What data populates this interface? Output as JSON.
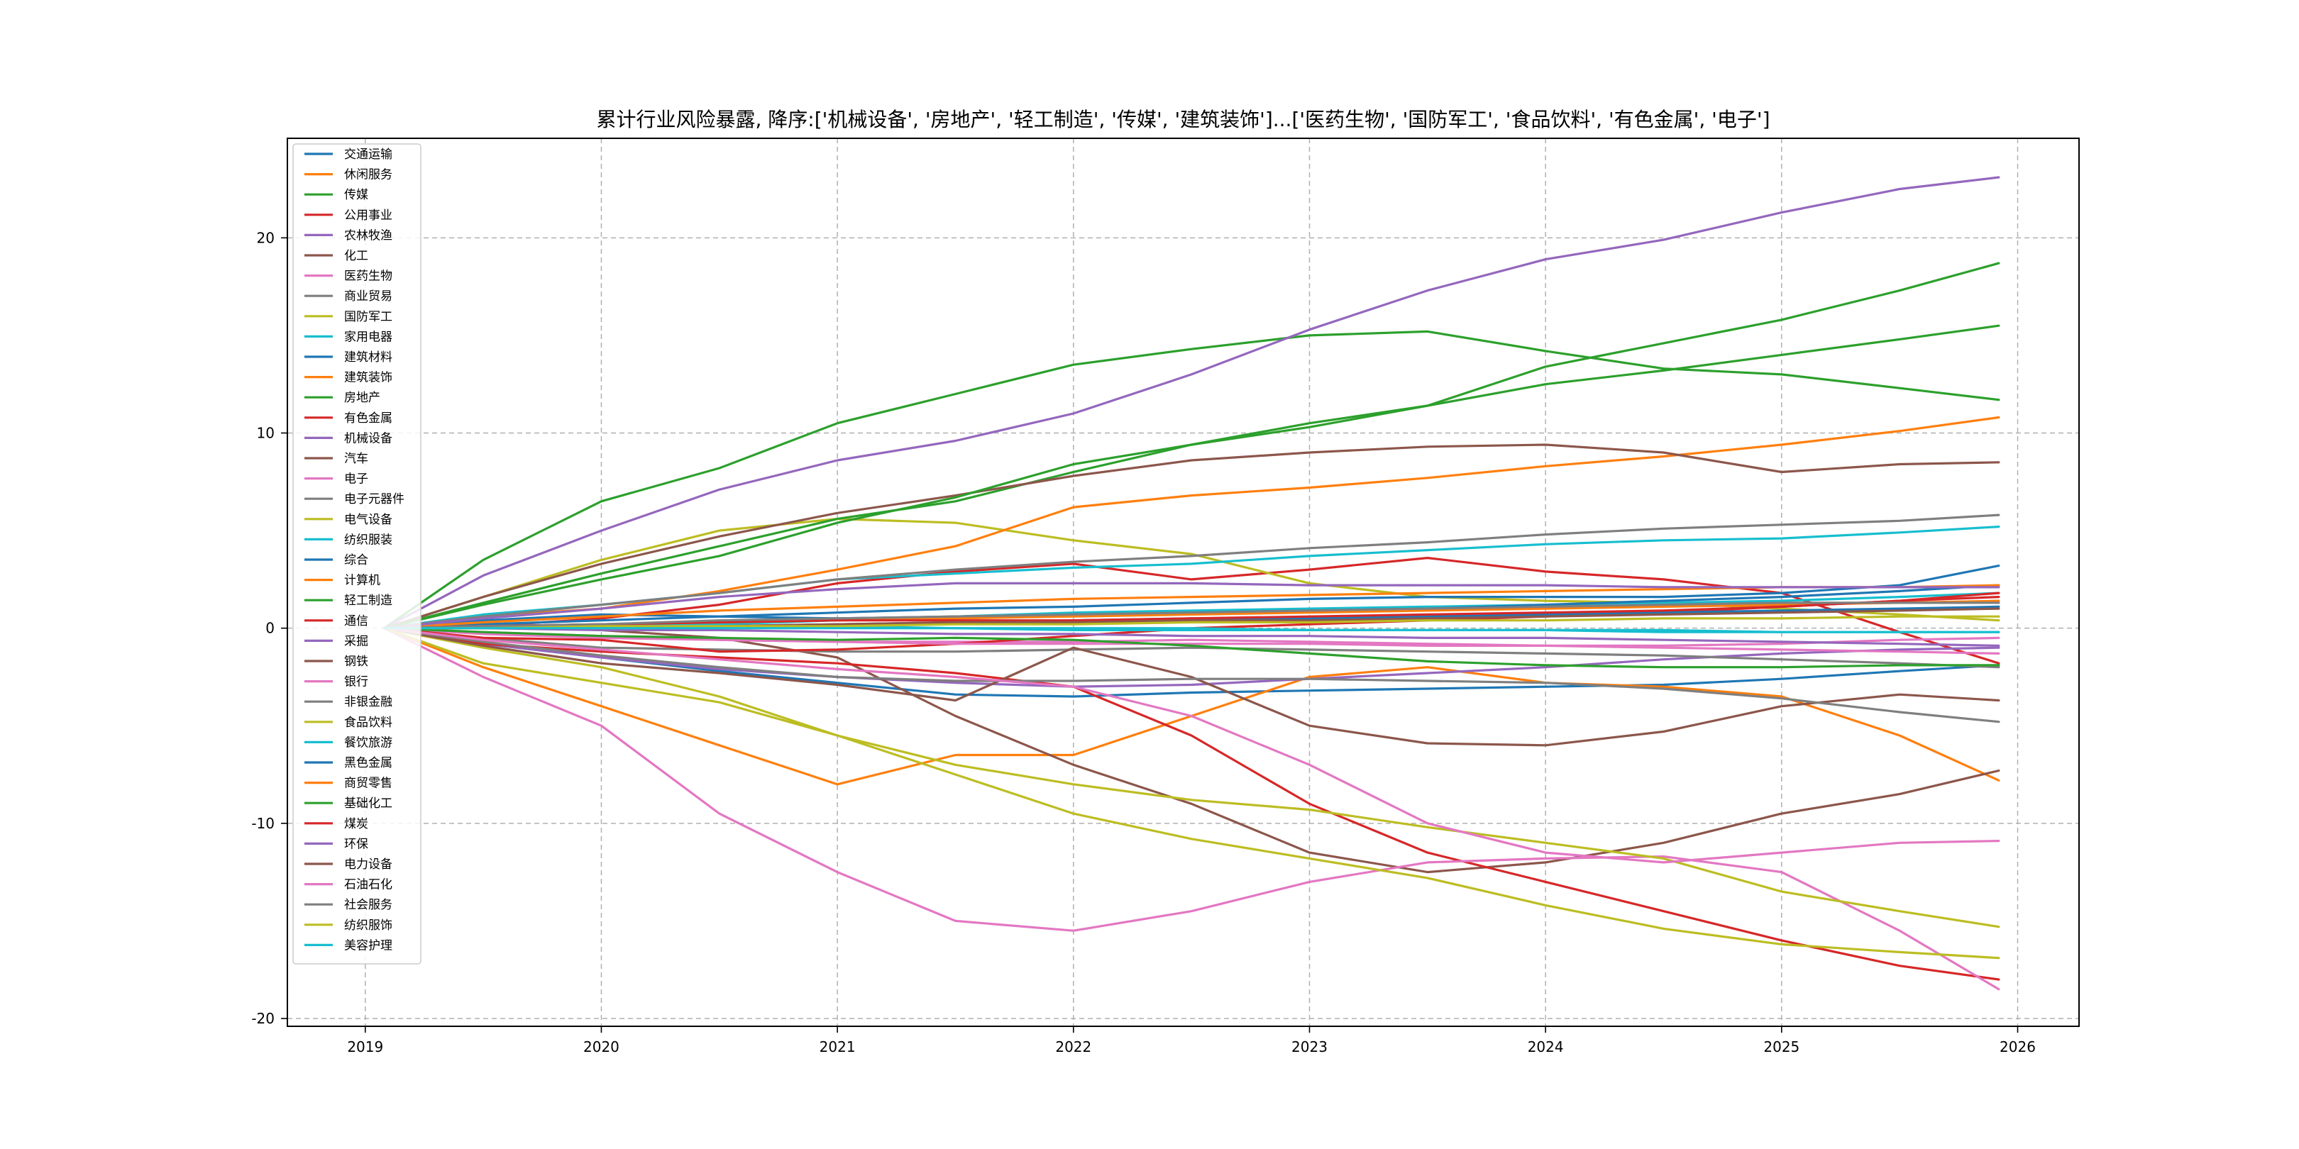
{
  "chart_data": {
    "type": "line",
    "title": "累计行业风险暴露, 降序:['机械设备', '房地产', '轻工制造', '传媒', '建筑装饰']...['医药生物', '国防军工', '食品饮料', '有色金属', '电子']",
    "xlabel": "",
    "ylabel": "",
    "x_ticks": [
      "2019",
      "2020",
      "2021",
      "2022",
      "2023",
      "2024",
      "2025",
      "2026"
    ],
    "y_ticks": [
      20,
      10,
      0,
      -10,
      -20
    ],
    "xlim": [
      2018.67,
      2026.26
    ],
    "ylim": [
      -20.4,
      25.1
    ],
    "grid": true,
    "legend_position": "upper-left",
    "x": [
      2019.08,
      2019.5,
      2020.0,
      2020.5,
      2021.0,
      2021.5,
      2022.0,
      2022.5,
      2023.0,
      2023.5,
      2024.0,
      2024.5,
      2025.0,
      2025.5,
      2025.92
    ],
    "series": [
      {
        "name": "交通运输",
        "color": "#1f77b4",
        "values": [
          0,
          -0.8,
          -1.5,
          -2.2,
          -2.8,
          -3.4,
          -3.5,
          -3.3,
          -3.2,
          -3.1,
          -3.0,
          -2.9,
          -2.6,
          -2.2,
          -1.9
        ]
      },
      {
        "name": "休闲服务",
        "color": "#ff7f0e",
        "values": [
          0,
          -2.0,
          -4.0,
          -6.0,
          -8.0,
          -6.5,
          -6.5,
          -4.5,
          -2.5,
          -2.0,
          -2.8,
          -3.0,
          -3.5,
          -5.5,
          -7.8
        ]
      },
      {
        "name": "传媒",
        "color": "#2ca02c",
        "values": [
          0,
          3.5,
          6.5,
          8.2,
          10.5,
          12.0,
          13.5,
          14.3,
          15.0,
          15.2,
          14.2,
          13.3,
          13.0,
          12.3,
          11.7
        ]
      },
      {
        "name": "公用事业",
        "color": "#d62728",
        "values": [
          0,
          0.1,
          0.5,
          1.2,
          2.3,
          2.9,
          3.3,
          2.5,
          3.0,
          3.6,
          2.9,
          2.5,
          1.8,
          -0.2,
          -1.8
        ]
      },
      {
        "name": "农林牧渔",
        "color": "#9467bd",
        "values": [
          0,
          -0.8,
          -1.5,
          -2.1,
          -2.5,
          -2.8,
          -3.0,
          -2.9,
          -2.6,
          -2.3,
          -2.0,
          -1.6,
          -1.3,
          -1.1,
          -1.0
        ]
      },
      {
        "name": "化工",
        "color": "#8c564b",
        "values": [
          0,
          0.1,
          -0.1,
          -0.5,
          -1.5,
          -4.5,
          -7.0,
          -9.0,
          -11.5,
          -12.5,
          -12.0,
          -11.0,
          -9.5,
          -8.5,
          -7.3
        ]
      },
      {
        "name": "医药生物",
        "color": "#e377c2",
        "values": [
          0,
          -0.3,
          -0.5,
          -0.6,
          -0.7,
          -0.7,
          -0.7,
          -0.6,
          -0.7,
          -0.8,
          -0.9,
          -1.0,
          -1.1,
          -1.2,
          -1.3
        ]
      },
      {
        "name": "商业贸易",
        "color": "#7f7f7f",
        "values": [
          0,
          -0.5,
          -1.0,
          -1.1,
          -1.2,
          -1.2,
          -1.1,
          -1.0,
          -1.1,
          -1.2,
          -1.3,
          -1.4,
          -1.6,
          -1.8,
          -2.0
        ]
      },
      {
        "name": "国防军工",
        "color": "#bcbd22",
        "values": [
          0,
          1.6,
          3.5,
          5.0,
          5.6,
          5.4,
          4.5,
          3.8,
          2.3,
          1.6,
          1.4,
          1.3,
          1.0,
          0.7,
          0.4
        ]
      },
      {
        "name": "家用电器",
        "color": "#17becf",
        "values": [
          0,
          0.7,
          1.2,
          1.8,
          2.5,
          2.8,
          3.1,
          3.3,
          3.7,
          4.0,
          4.3,
          4.5,
          4.6,
          4.9,
          5.2
        ]
      },
      {
        "name": "建筑材料",
        "color": "#1f77b4",
        "values": [
          0,
          0.2,
          0.4,
          0.6,
          0.8,
          1.0,
          1.1,
          1.3,
          1.5,
          1.6,
          1.6,
          1.6,
          1.8,
          2.2,
          3.2
        ]
      },
      {
        "name": "建筑装饰",
        "color": "#ff7f0e",
        "values": [
          0,
          0.6,
          1.0,
          1.9,
          3.0,
          4.2,
          6.2,
          6.8,
          7.2,
          7.7,
          8.3,
          8.8,
          9.4,
          10.1,
          10.8
        ]
      },
      {
        "name": "房地产",
        "color": "#2ca02c",
        "values": [
          0,
          1.3,
          2.8,
          4.2,
          5.6,
          6.5,
          8.0,
          9.4,
          10.5,
          11.4,
          12.5,
          13.2,
          14.0,
          14.8,
          15.5
        ]
      },
      {
        "name": "有色金属",
        "color": "#d62728",
        "values": [
          0,
          -0.8,
          -1.2,
          -1.5,
          -1.8,
          -2.3,
          -3.0,
          -5.5,
          -9.0,
          -11.5,
          -13.0,
          -14.5,
          -16.0,
          -17.3,
          -18.0
        ]
      },
      {
        "name": "机械设备",
        "color": "#9467bd",
        "values": [
          0,
          2.7,
          5.0,
          7.1,
          8.6,
          9.6,
          11.0,
          13.0,
          15.3,
          17.3,
          18.9,
          19.9,
          21.3,
          22.5,
          23.1
        ]
      },
      {
        "name": "汽车",
        "color": "#8c564b",
        "values": [
          0,
          1.6,
          3.3,
          4.7,
          5.9,
          6.8,
          7.8,
          8.6,
          9.0,
          9.3,
          9.4,
          9.0,
          8.0,
          8.4,
          8.5
        ]
      },
      {
        "name": "电子",
        "color": "#e377c2",
        "values": [
          0,
          -2.5,
          -5.0,
          -9.5,
          -12.5,
          -15.0,
          -15.5,
          -14.5,
          -13.0,
          -12.0,
          -11.8,
          -11.7,
          -12.5,
          -15.5,
          -18.5
        ]
      },
      {
        "name": "电子元器件",
        "color": "#7f7f7f",
        "values": [
          0,
          0.6,
          1.2,
          1.8,
          2.5,
          3.0,
          3.4,
          3.7,
          4.1,
          4.4,
          4.8,
          5.1,
          5.3,
          5.5,
          5.8
        ]
      },
      {
        "name": "电气设备",
        "color": "#bcbd22",
        "values": [
          0,
          -1.0,
          -2.0,
          -3.5,
          -5.5,
          -7.0,
          -8.0,
          -8.8,
          -9.3,
          -10.2,
          -11.0,
          -11.8,
          -13.5,
          -14.5,
          -15.3
        ]
      },
      {
        "name": "纺织服装",
        "color": "#17becf",
        "values": [
          0,
          0.0,
          0.1,
          0.2,
          0.4,
          0.6,
          0.8,
          0.9,
          1.0,
          1.1,
          1.2,
          1.3,
          1.4,
          1.6,
          1.8
        ]
      },
      {
        "name": "综合",
        "color": "#1f77b4",
        "values": [
          0,
          0.4,
          0.7,
          0.6,
          0.5,
          0.6,
          0.7,
          0.8,
          0.9,
          1.0,
          1.2,
          1.4,
          1.6,
          1.9,
          2.2
        ]
      },
      {
        "name": "计算机",
        "color": "#ff7f0e",
        "values": [
          0,
          0.3,
          0.6,
          0.9,
          1.1,
          1.3,
          1.5,
          1.6,
          1.7,
          1.8,
          1.9,
          2.0,
          2.1,
          2.1,
          2.2
        ]
      },
      {
        "name": "轻工制造",
        "color": "#2ca02c",
        "values": [
          0,
          1.2,
          2.5,
          3.7,
          5.4,
          6.7,
          8.4,
          9.4,
          10.3,
          11.4,
          13.4,
          14.6,
          15.8,
          17.3,
          18.7
        ]
      },
      {
        "name": "通信",
        "color": "#d62728",
        "values": [
          0,
          -0.5,
          -0.6,
          -1.2,
          -1.1,
          -0.8,
          -0.4,
          0.0,
          0.2,
          0.4,
          0.6,
          0.8,
          1.1,
          1.4,
          1.8
        ]
      },
      {
        "name": "采掘",
        "color": "#9467bd",
        "values": [
          0,
          0.5,
          1.0,
          1.6,
          2.0,
          2.3,
          2.3,
          2.3,
          2.2,
          2.2,
          2.2,
          2.1,
          2.1,
          2.1,
          2.1
        ]
      },
      {
        "name": "钢铁",
        "color": "#8c564b",
        "values": [
          0,
          -0.9,
          -1.8,
          -2.3,
          -2.9,
          -3.7,
          -1.0,
          -2.5,
          -5.0,
          -5.9,
          -6.0,
          -5.3,
          -4.0,
          -3.4,
          -3.7
        ]
      },
      {
        "name": "银行",
        "color": "#e377c2",
        "values": [
          0,
          -0.2,
          -0.4,
          -0.6,
          -0.7,
          -0.8,
          -0.8,
          -0.8,
          -0.8,
          -0.9,
          -0.9,
          -0.9,
          -0.8,
          -0.6,
          -0.5
        ]
      },
      {
        "name": "非银金融",
        "color": "#7f7f7f",
        "values": [
          0,
          -0.7,
          -1.4,
          -2.0,
          -2.5,
          -2.7,
          -2.7,
          -2.6,
          -2.6,
          -2.7,
          -2.8,
          -3.1,
          -3.6,
          -4.3,
          -4.8
        ]
      },
      {
        "name": "食品饮料",
        "color": "#bcbd22",
        "values": [
          0,
          -1.8,
          -2.8,
          -3.8,
          -5.5,
          -7.5,
          -9.5,
          -10.8,
          -11.8,
          -12.8,
          -14.2,
          -15.4,
          -16.2,
          -16.6,
          -16.9
        ]
      },
      {
        "name": "餐饮旅游",
        "color": "#17becf",
        "values": [
          0,
          0.1,
          0.1,
          0.1,
          0.1,
          0.0,
          0.0,
          0.0,
          -0.1,
          -0.1,
          -0.1,
          -0.2,
          -0.2,
          -0.2,
          -0.2
        ]
      },
      {
        "name": "黑色金属",
        "color": "#1f77b4",
        "values": [
          0,
          0.0,
          0.0,
          0.1,
          0.2,
          0.3,
          0.4,
          0.5,
          0.5,
          0.6,
          0.7,
          0.8,
          0.9,
          1.0,
          1.1
        ]
      },
      {
        "name": "商贸零售",
        "color": "#ff7f0e",
        "values": [
          0,
          0.1,
          0.2,
          0.3,
          0.4,
          0.5,
          0.6,
          0.7,
          0.8,
          0.9,
          1.0,
          1.1,
          1.2,
          1.3,
          1.4
        ]
      },
      {
        "name": "基础化工",
        "color": "#2ca02c",
        "values": [
          0,
          -0.2,
          -0.4,
          -0.5,
          -0.6,
          -0.5,
          -0.6,
          -0.9,
          -1.3,
          -1.7,
          -1.9,
          -2.0,
          -2.0,
          -1.9,
          -1.9
        ]
      },
      {
        "name": "煤炭",
        "color": "#d62728",
        "values": [
          0,
          0.1,
          0.2,
          0.3,
          0.4,
          0.4,
          0.4,
          0.5,
          0.6,
          0.7,
          0.8,
          0.9,
          1.1,
          1.4,
          1.6
        ]
      },
      {
        "name": "环保",
        "color": "#9467bd",
        "values": [
          0,
          0.0,
          -0.1,
          -0.1,
          -0.2,
          -0.3,
          -0.3,
          -0.4,
          -0.4,
          -0.5,
          -0.5,
          -0.6,
          -0.7,
          -0.8,
          -0.9
        ]
      },
      {
        "name": "电力设备",
        "color": "#8c564b",
        "values": [
          0,
          0.0,
          0.0,
          0.1,
          0.2,
          0.3,
          0.3,
          0.4,
          0.4,
          0.5,
          0.6,
          0.7,
          0.8,
          0.9,
          1.0
        ]
      },
      {
        "name": "石油石化",
        "color": "#e377c2",
        "values": [
          0,
          -0.6,
          -1.1,
          -1.6,
          -2.1,
          -2.5,
          -3.0,
          -4.5,
          -7.0,
          -10.0,
          -11.5,
          -12.0,
          -11.5,
          -11.0,
          -10.9
        ]
      },
      {
        "name": "社会服务",
        "color": "#7f7f7f",
        "values": [
          0,
          0.1,
          0.2,
          0.4,
          0.5,
          0.6,
          0.7,
          0.8,
          0.9,
          1.0,
          1.1,
          1.2,
          1.3,
          1.3,
          1.3
        ]
      },
      {
        "name": "纺织服饰",
        "color": "#bcbd22",
        "values": [
          0,
          0.0,
          0.1,
          0.1,
          0.1,
          0.2,
          0.2,
          0.3,
          0.3,
          0.4,
          0.4,
          0.5,
          0.5,
          0.6,
          0.6
        ]
      },
      {
        "name": "美容护理",
        "color": "#17becf",
        "values": [
          0,
          0.0,
          0.0,
          0.0,
          0.0,
          0.0,
          -0.1,
          -0.1,
          -0.1,
          -0.1,
          -0.1,
          -0.1,
          -0.2,
          -0.2,
          -0.2
        ]
      }
    ]
  }
}
